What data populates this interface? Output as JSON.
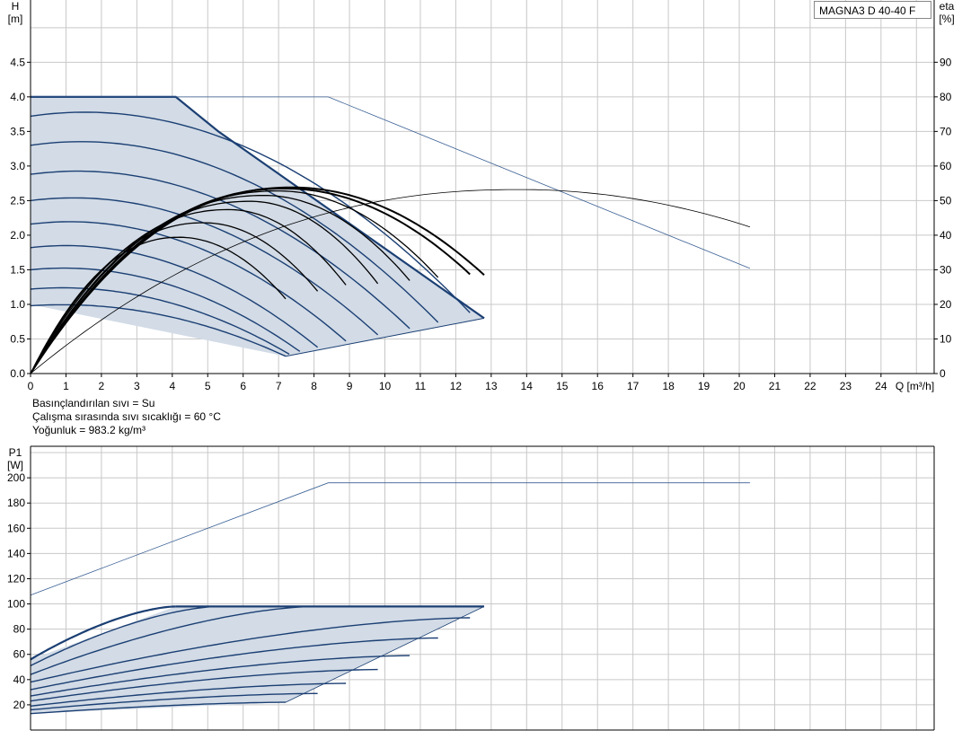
{
  "model": "MAGNA3 D 40-40 F",
  "fluid_info": {
    "line1": "Basınçlandırılan sıvı = Su",
    "line2": "Çalışma sırasında sıvı sıcaklığı = 60 °C",
    "line3": "Yoğunluk = 983.2 kg/m³"
  },
  "colors": {
    "grid": "#c8c8c8",
    "curve_blue": "#1b3f73",
    "area_fill": "#d2dbe6",
    "thin_blue": "#3a5f94",
    "eta_black": "#000000"
  },
  "chart_data": [
    {
      "type": "line",
      "x_axis": {
        "unit": "Q [m³/h]",
        "range": [
          0,
          25.5
        ],
        "ticks": [
          0,
          1,
          2,
          3,
          4,
          5,
          6,
          7,
          8,
          9,
          10,
          11,
          12,
          13,
          14,
          15,
          16,
          17,
          18,
          19,
          20,
          21,
          22,
          23,
          24
        ]
      },
      "y_axis_left": {
        "label": "H",
        "unit": "[m]",
        "range": [
          0,
          5.4
        ],
        "ticks": [
          "0.0",
          "0.5",
          "1.0",
          "1.5",
          "2.0",
          "2.5",
          "3.0",
          "3.5",
          "4.0",
          "4.5"
        ]
      },
      "y_axis_right": {
        "label": "eta",
        "unit": "[%]",
        "range": [
          0,
          108
        ],
        "ticks": [
          "0",
          "10",
          "20",
          "30",
          "40",
          "50",
          "60",
          "70",
          "80",
          "90"
        ]
      },
      "grid": true,
      "envelope": [
        [
          0,
          4.0
        ],
        [
          4.1,
          4.0
        ],
        [
          5.3,
          3.5
        ],
        [
          12.8,
          0.8
        ],
        [
          7.2,
          0.25
        ],
        [
          0,
          1.0
        ]
      ],
      "head_curves": [
        {
          "h0": 4.0,
          "qmax": 12.8,
          "hend": 0.8
        },
        {
          "h0": 3.72,
          "qmax": 12.4,
          "hend": 0.88
        },
        {
          "h0": 3.3,
          "qmax": 11.5,
          "hend": 0.74
        },
        {
          "h0": 2.88,
          "qmax": 10.7,
          "hend": 0.65
        },
        {
          "h0": 2.5,
          "qmax": 9.8,
          "hend": 0.56
        },
        {
          "h0": 2.16,
          "qmax": 8.9,
          "hend": 0.47
        },
        {
          "h0": 1.82,
          "qmax": 8.1,
          "hend": 0.38
        },
        {
          "h0": 1.5,
          "qmax": 7.6,
          "hend": 0.32
        },
        {
          "h0": 1.22,
          "qmax": 7.3,
          "hend": 0.28
        },
        {
          "h0": 0.98,
          "qmax": 7.2,
          "hend": 0.25
        }
      ],
      "eta_curves": [
        {
          "peak_q": 7.4,
          "peak": 53.8,
          "qmax": 12.8,
          "end": 28.5
        },
        {
          "peak_q": 7.2,
          "peak": 53.5,
          "qmax": 12.4,
          "end": 28.7
        },
        {
          "peak_q": 7.0,
          "peak": 52.8,
          "qmax": 11.5,
          "end": 27.8
        },
        {
          "peak_q": 6.6,
          "peak": 51.5,
          "qmax": 10.7,
          "end": 26.9
        },
        {
          "peak_q": 6.2,
          "peak": 49.8,
          "qmax": 9.8,
          "end": 26.0
        },
        {
          "peak_q": 5.6,
          "peak": 47.4,
          "qmax": 8.9,
          "end": 25.6
        },
        {
          "peak_q": 4.9,
          "peak": 43.6,
          "qmax": 8.1,
          "end": 23.8
        },
        {
          "peak_q": 4.2,
          "peak": 39.4,
          "qmax": 7.2,
          "end": 21.6
        }
      ],
      "max_head_line": [
        [
          0,
          4.0
        ],
        [
          8.4,
          4.0
        ],
        [
          20.3,
          1.52
        ]
      ],
      "max_eta_line": {
        "peak_q": 13.8,
        "peak": 53.2,
        "qmax": 20.3,
        "end": 42.4
      }
    },
    {
      "type": "line",
      "x_axis": {
        "range": [
          0,
          25.5
        ]
      },
      "y_axis_left": {
        "label": "P1",
        "unit": "[W]",
        "range": [
          0,
          225
        ],
        "ticks": [
          "20",
          "40",
          "60",
          "80",
          "100",
          "120",
          "140",
          "160",
          "180",
          "200"
        ]
      },
      "grid": true,
      "envelope": [
        [
          0,
          56
        ],
        [
          4.1,
          98
        ],
        [
          12.8,
          98
        ],
        [
          7.2,
          22
        ],
        [
          0,
          13
        ]
      ],
      "power_curves": [
        {
          "p0": 56,
          "qmax": 4.1,
          "pend": 98
        },
        {
          "p0": 51,
          "qmax": 5.3,
          "pend": 98
        },
        {
          "p0": 44,
          "qmax": 8.0,
          "pend": 98
        },
        {
          "p0": 38,
          "qmax": 12.4,
          "pend": 89
        },
        {
          "p0": 32,
          "qmax": 11.5,
          "pend": 73
        },
        {
          "p0": 27,
          "qmax": 10.7,
          "pend": 59
        },
        {
          "p0": 23,
          "qmax": 9.8,
          "pend": 48
        },
        {
          "p0": 19,
          "qmax": 8.9,
          "pend": 37
        },
        {
          "p0": 16,
          "qmax": 8.1,
          "pend": 29
        },
        {
          "p0": 13,
          "qmax": 7.2,
          "pend": 22
        }
      ],
      "max_power_line": [
        [
          0,
          107
        ],
        [
          8.4,
          196
        ],
        [
          20.3,
          196
        ]
      ]
    }
  ]
}
